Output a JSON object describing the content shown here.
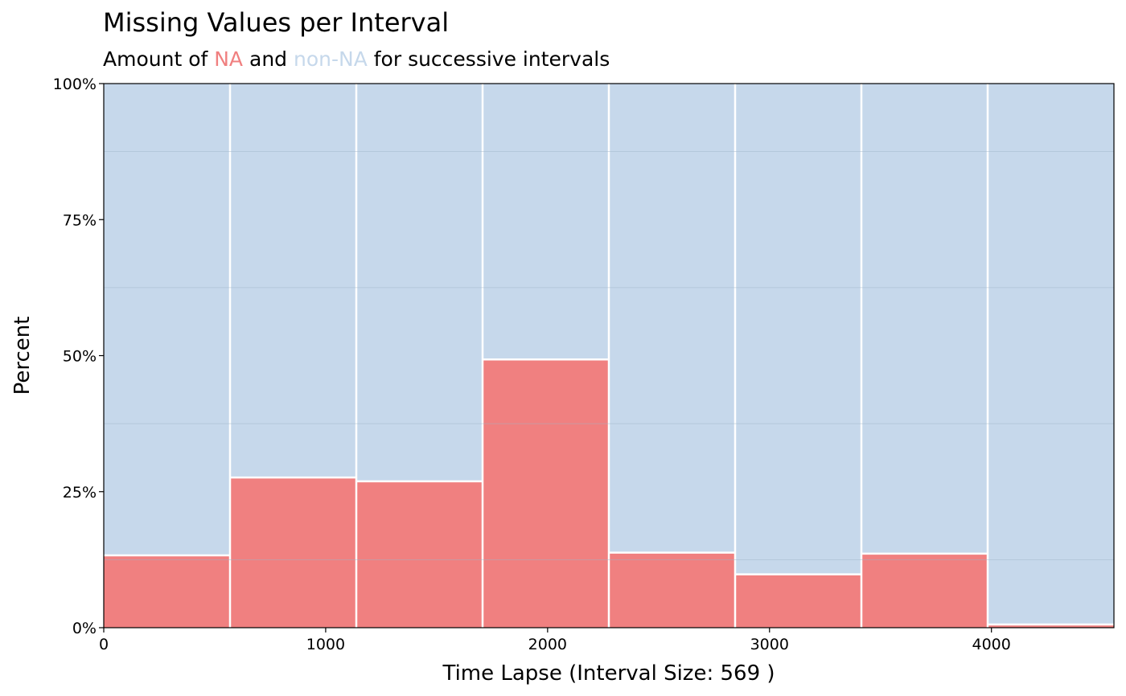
{
  "chart_data": {
    "type": "bar",
    "title": "Missing Values per Interval",
    "subtitle": {
      "prefix": "Amount of ",
      "na_label": "NA",
      "middle": " and ",
      "nonna_label": "non-NA",
      "suffix": " for successive intervals"
    },
    "xlabel": "Time Lapse (Interval Size: 569 )",
    "ylabel": "Percent",
    "interval_size": 569,
    "xlim": [
      0,
      4552
    ],
    "ylim": [
      0,
      100
    ],
    "x_ticks": [
      {
        "value": 0,
        "label": "0"
      },
      {
        "value": 1000,
        "label": "1000"
      },
      {
        "value": 2000,
        "label": "2000"
      },
      {
        "value": 3000,
        "label": "3000"
      },
      {
        "value": 4000,
        "label": "4000"
      }
    ],
    "y_ticks": [
      {
        "value": 0,
        "label": "0%"
      },
      {
        "value": 25,
        "label": "25%"
      },
      {
        "value": 50,
        "label": "50%"
      },
      {
        "value": 75,
        "label": "75%"
      },
      {
        "value": 100,
        "label": "100%"
      }
    ],
    "intervals": [
      {
        "start": 0,
        "end": 569,
        "na": 13.3
      },
      {
        "start": 569,
        "end": 1138,
        "na": 27.6
      },
      {
        "start": 1138,
        "end": 1707,
        "na": 26.9
      },
      {
        "start": 1707,
        "end": 2276,
        "na": 49.3
      },
      {
        "start": 2276,
        "end": 2845,
        "na": 13.8
      },
      {
        "start": 2845,
        "end": 3414,
        "na": 9.8
      },
      {
        "start": 3414,
        "end": 3983,
        "na": 13.6
      },
      {
        "start": 3983,
        "end": 4552,
        "na": 0.6
      }
    ],
    "series": [
      {
        "name": "NA",
        "color": "#f08080"
      },
      {
        "name": "non-NA",
        "color": "#c6d8eb"
      }
    ],
    "grid": true
  }
}
